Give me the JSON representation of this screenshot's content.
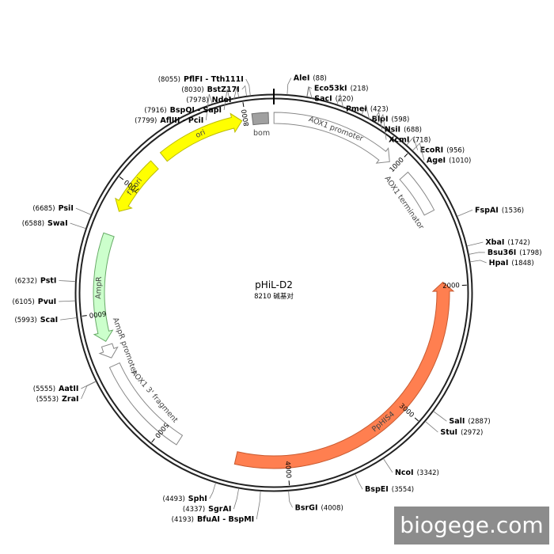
{
  "plasmid": {
    "name": "pHiL-D2",
    "length_label": "8210 碱基对",
    "length_bp": 8210
  },
  "ticks": [
    {
      "bp": 1000,
      "label": "1000"
    },
    {
      "bp": 2000,
      "label": "2000"
    },
    {
      "bp": 3000,
      "label": "3000"
    },
    {
      "bp": 4000,
      "label": "4000"
    },
    {
      "bp": 5000,
      "label": "5000"
    },
    {
      "bp": 6000,
      "label": "6000"
    },
    {
      "bp": 7000,
      "label": "7000"
    },
    {
      "bp": 8000,
      "label": "8000"
    }
  ],
  "features": [
    {
      "name": "AOX1 promoter",
      "start": 1,
      "end": 945,
      "type": "arrow",
      "color": "#ffffff",
      "stroke": "#888888"
    },
    {
      "name": "AOX1 terminator",
      "start": 1095,
      "end": 1430,
      "type": "box",
      "color": "#ffffff",
      "stroke": "#888888"
    },
    {
      "name": "PpHIS4",
      "start": 1970,
      "end": 4400,
      "type": "arrow-ccw",
      "color": "#ff7f50",
      "stroke": "#c85a30"
    },
    {
      "name": "AOX1 3' fragment",
      "start": 4850,
      "end": 5600,
      "type": "box",
      "color": "#ffffff",
      "stroke": "#888888"
    },
    {
      "name": "AmpR promoter",
      "start": 5660,
      "end": 5760,
      "type": "arrow-ccw",
      "color": "#ffffff",
      "stroke": "#888888"
    },
    {
      "name": "AmpR",
      "start": 5790,
      "end": 6600,
      "type": "arrow-ccw",
      "color": "#ccffcc",
      "stroke": "#66aa66"
    },
    {
      "name": "f1 ori",
      "start": 6790,
      "end": 7230,
      "type": "arrow-ccw",
      "color": "#ffff00",
      "stroke": "#bbbb00"
    },
    {
      "name": "ori",
      "start": 7320,
      "end": 7970,
      "type": "arrow",
      "color": "#ffff00",
      "stroke": "#bbbb00"
    },
    {
      "name": "bom",
      "start": 8050,
      "end": 8170,
      "type": "box",
      "color": "#a0a0a0",
      "stroke": "#707070"
    }
  ],
  "sites": [
    {
      "name": "AleI",
      "pos": "(88)",
      "bp": 88
    },
    {
      "name": "Eco53kI",
      "pos": "(218)",
      "bp": 218
    },
    {
      "name": "SacI",
      "pos": "(220)",
      "bp": 220
    },
    {
      "name": "PmeI",
      "pos": "(423)",
      "bp": 423
    },
    {
      "name": "BlpI",
      "pos": "(598)",
      "bp": 598
    },
    {
      "name": "NsiI",
      "pos": "(688)",
      "bp": 688
    },
    {
      "name": "XcmI",
      "pos": "(718)",
      "bp": 718
    },
    {
      "name": "EcoRI",
      "pos": "(956)",
      "bp": 956
    },
    {
      "name": "AgeI",
      "pos": "(1010)",
      "bp": 1010
    },
    {
      "name": "FspAI",
      "pos": "(1536)",
      "bp": 1536
    },
    {
      "name": "XbaI",
      "pos": "(1742)",
      "bp": 1742
    },
    {
      "name": "Bsu36I",
      "pos": "(1798)",
      "bp": 1798
    },
    {
      "name": "HpaI",
      "pos": "(1848)",
      "bp": 1848
    },
    {
      "name": "SalI",
      "pos": "(2887)",
      "bp": 2887
    },
    {
      "name": "StuI",
      "pos": "(2972)",
      "bp": 2972
    },
    {
      "name": "NcoI",
      "pos": "(3342)",
      "bp": 3342
    },
    {
      "name": "BspEI",
      "pos": "(3554)",
      "bp": 3554
    },
    {
      "name": "BsrGI",
      "pos": "(4008)",
      "bp": 4008
    },
    {
      "name": "BfuAI - BspMI",
      "pos": "(4193)",
      "bp": 4193
    },
    {
      "name": "SgrAI",
      "pos": "(4337)",
      "bp": 4337
    },
    {
      "name": "SphI",
      "pos": "(4493)",
      "bp": 4493
    },
    {
      "name": "ZraI",
      "pos": "(5553)",
      "bp": 5553
    },
    {
      "name": "AatII",
      "pos": "(5555)",
      "bp": 5555
    },
    {
      "name": "ScaI",
      "pos": "(5993)",
      "bp": 5993
    },
    {
      "name": "PvuI",
      "pos": "(6105)",
      "bp": 6105
    },
    {
      "name": "PstI",
      "pos": "(6232)",
      "bp": 6232
    },
    {
      "name": "SwaI",
      "pos": "(6588)",
      "bp": 6588
    },
    {
      "name": "PsiI",
      "pos": "(6685)",
      "bp": 6685
    },
    {
      "name": "AflIII - PciI",
      "pos": "(7799)",
      "bp": 7799
    },
    {
      "name": "BspQI - SapI",
      "pos": "(7916)",
      "bp": 7916
    },
    {
      "name": "NdeI",
      "pos": "(7978)",
      "bp": 7978
    },
    {
      "name": "BstZ17I",
      "pos": "(8030)",
      "bp": 8030
    },
    {
      "name": "PflFI - Tth111I",
      "pos": "(8055)",
      "bp": 8055
    }
  ],
  "watermark": "biogege.com",
  "colors": {
    "backbone": "#222222"
  }
}
